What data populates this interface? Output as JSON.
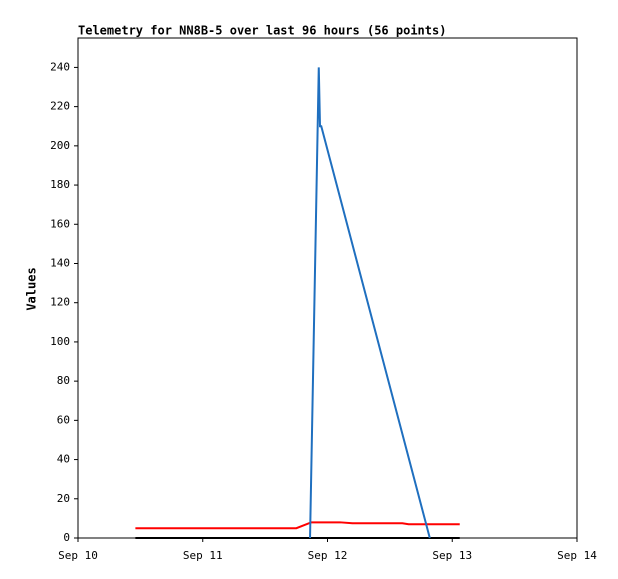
{
  "chart_data": {
    "type": "line",
    "title": "Telemetry for NN8B-5 over last 96 hours (56 points)",
    "y_label": "Values",
    "xlim": [
      10,
      14
    ],
    "xticks": [
      {
        "value": 10,
        "label": "Sep 10"
      },
      {
        "value": 11,
        "label": "Sep 11"
      },
      {
        "value": 12,
        "label": "Sep 12"
      },
      {
        "value": 13,
        "label": "Sep 13"
      },
      {
        "value": 14,
        "label": "Sep 14"
      }
    ],
    "ylim": [
      0,
      255
    ],
    "yticks": [
      0,
      20,
      40,
      60,
      80,
      100,
      120,
      140,
      160,
      180,
      200,
      220,
      240
    ],
    "series": [
      {
        "color": "#000000",
        "x": [
          10.46,
          13.06
        ],
        "values": [
          0,
          0
        ]
      },
      {
        "color": "#ff0000",
        "x": [
          10.46,
          11.75,
          11.87,
          12.1,
          12.2,
          12.6,
          12.65,
          13.06
        ],
        "values": [
          5,
          5,
          8,
          8,
          7.5,
          7.5,
          7,
          7
        ]
      },
      {
        "color": "#1f6fbf",
        "x": [
          11.86,
          11.93,
          11.94,
          11.95,
          12.82
        ],
        "values": [
          0,
          240,
          210,
          210,
          0
        ]
      }
    ]
  }
}
